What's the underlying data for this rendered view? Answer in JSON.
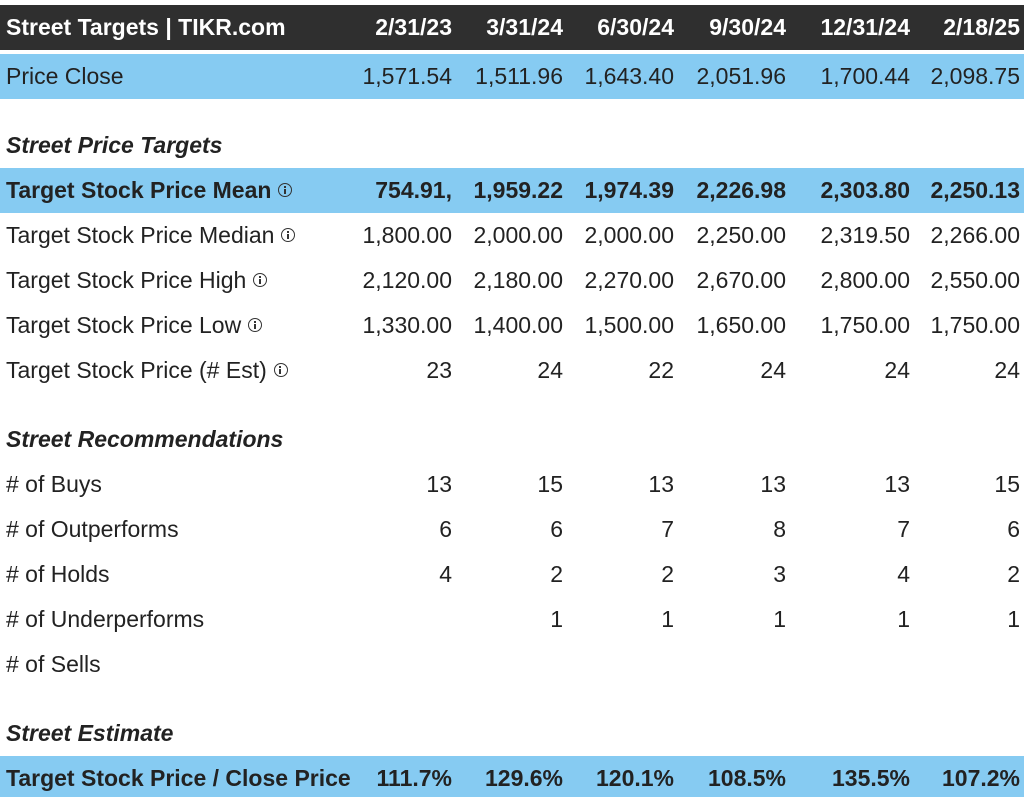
{
  "header": {
    "title": "Street Targets | TIKR.com",
    "dates": [
      "2/31/23",
      "3/31/24",
      "6/30/24",
      "9/30/24",
      "12/31/24",
      "2/18/25"
    ]
  },
  "price_close": {
    "label": "Price Close",
    "values": [
      "1,571.54",
      "1,511.96",
      "1,643.40",
      "2,051.96",
      "1,700.44",
      "2,098.75"
    ]
  },
  "sections": {
    "price_targets": "Street Price Targets",
    "recommendations": "Street Recommendations",
    "estimate": "Street Estimate"
  },
  "targets": {
    "mean": {
      "label": "Target Stock Price Mean",
      "values": [
        ",754.91",
        "1,959.22",
        "1,974.39",
        "2,226.98",
        "2,303.80",
        "2,250.13"
      ]
    },
    "median": {
      "label": "Target Stock Price Median",
      "values": [
        "1,800.00",
        "2,000.00",
        "2,000.00",
        "2,250.00",
        "2,319.50",
        "2,266.00"
      ]
    },
    "high": {
      "label": "Target Stock Price High",
      "values": [
        "2,120.00",
        "2,180.00",
        "2,270.00",
        "2,670.00",
        "2,800.00",
        "2,550.00"
      ]
    },
    "low": {
      "label": "Target Stock Price Low",
      "values": [
        "1,330.00",
        "1,400.00",
        "1,500.00",
        "1,650.00",
        "1,750.00",
        "1,750.00"
      ]
    },
    "est": {
      "label": "Target Stock Price (# Est)",
      "values": [
        "23",
        "24",
        "22",
        "24",
        "24",
        "24"
      ]
    }
  },
  "recommendations": {
    "buys": {
      "label": "# of Buys",
      "values": [
        "13",
        "15",
        "13",
        "13",
        "13",
        "15"
      ]
    },
    "outperforms": {
      "label": "# of Outperforms",
      "values": [
        "6",
        "6",
        "7",
        "8",
        "7",
        "6"
      ]
    },
    "holds": {
      "label": "# of Holds",
      "values": [
        "4",
        "2",
        "2",
        "3",
        "4",
        "2"
      ]
    },
    "underperforms": {
      "label": "# of Underperforms",
      "values": [
        "",
        "1",
        "1",
        "1",
        "1",
        "1"
      ]
    },
    "sells": {
      "label": "# of Sells",
      "values": [
        "",
        "",
        "",
        "",
        "",
        ""
      ]
    }
  },
  "estimate": {
    "ratio": {
      "label": "Target Stock Price / Close Price",
      "values": [
        "111.7%",
        "129.6%",
        "120.1%",
        "108.5%",
        "135.5%",
        "107.2%"
      ]
    }
  },
  "colors": {
    "header_bg": "#2f2f2f",
    "highlight_bg": "#86cbf2"
  },
  "icons": {
    "info": "info-circle-icon"
  }
}
